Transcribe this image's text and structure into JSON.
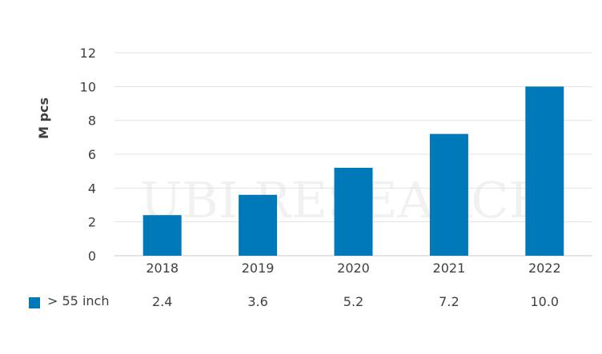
{
  "chart_data": {
    "type": "bar",
    "categories": [
      "2018",
      "2019",
      "2020",
      "2021",
      "2022"
    ],
    "series": [
      {
        "name": "> 55 inch",
        "values": [
          2.4,
          3.6,
          5.2,
          7.2,
          10.0
        ],
        "color": "#0079B8"
      }
    ],
    "table_values": [
      "2.4",
      "3.6",
      "5.2",
      "7.2",
      "10.0"
    ],
    "ylabel": "M pcs",
    "ylim": [
      0,
      12
    ],
    "yticks": [
      0,
      2,
      4,
      6,
      8,
      10,
      12
    ],
    "grid": true,
    "legend_placement": "bottom-left data table"
  },
  "watermark": {
    "text": "UBI RESEARCH"
  },
  "colors": {
    "bar": "#0079B8",
    "grid": "#e3e3e3",
    "axis": "#c8c8c8",
    "text": "#404040"
  }
}
